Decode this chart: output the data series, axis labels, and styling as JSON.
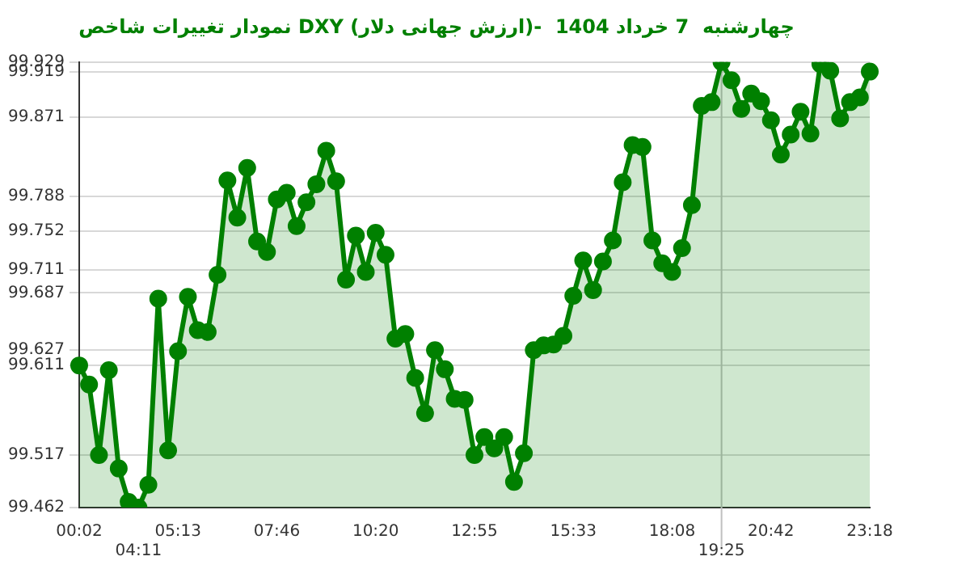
{
  "chart_data": {
    "type": "area",
    "title": "نمودار تغییرات شاخص DXY (ارزش جهانی دلار)-  چهارشنبه  7 خرداد 1404",
    "categories": [
      "00:02",
      null,
      null,
      null,
      null,
      null,
      "04:11",
      null,
      null,
      null,
      "05:13",
      null,
      null,
      null,
      null,
      null,
      null,
      null,
      null,
      null,
      "07:46",
      null,
      null,
      null,
      null,
      null,
      null,
      null,
      null,
      null,
      "10:20",
      null,
      null,
      null,
      null,
      null,
      null,
      null,
      null,
      null,
      "12:55",
      null,
      null,
      null,
      null,
      null,
      null,
      null,
      null,
      null,
      "15:33",
      null,
      null,
      null,
      null,
      null,
      null,
      null,
      null,
      null,
      "18:08",
      null,
      null,
      null,
      null,
      "19:25",
      null,
      null,
      null,
      null,
      "20:42",
      null,
      null,
      null,
      null,
      null,
      null,
      null,
      null,
      null,
      "23:18"
    ],
    "series": [
      {
        "color": "#008000",
        "values": [
          99.611,
          99.591,
          99.517,
          99.606,
          99.503,
          99.468,
          99.462,
          99.486,
          99.681,
          99.522,
          99.626,
          99.683,
          99.648,
          99.646,
          99.706,
          99.805,
          99.766,
          99.818,
          99.741,
          99.73,
          99.785,
          99.792,
          99.757,
          99.782,
          99.801,
          99.836,
          99.804,
          99.701,
          99.747,
          99.709,
          99.75,
          99.727,
          99.639,
          99.644,
          99.598,
          99.561,
          99.627,
          99.607,
          99.576,
          99.575,
          99.517,
          99.536,
          99.524,
          99.536,
          99.489,
          99.519,
          99.627,
          99.632,
          99.633,
          99.642,
          99.684,
          99.721,
          99.69,
          99.72,
          99.742,
          99.803,
          99.842,
          99.84,
          99.742,
          99.718,
          99.709,
          99.734,
          99.779,
          99.883,
          99.887,
          99.929,
          99.91,
          99.88,
          99.896,
          99.888,
          99.868,
          99.832,
          99.853,
          99.877,
          99.854,
          99.927,
          99.92,
          99.87,
          99.887,
          99.892,
          99.919
        ]
      }
    ],
    "ylim": [
      99.462,
      99.929
    ],
    "yticks": [
      99.462,
      99.517,
      99.611,
      99.627,
      99.687,
      99.711,
      99.752,
      99.788,
      99.871,
      99.919,
      99.929
    ],
    "ref_lines": [
      {
        "axis": "x",
        "value": "19:25",
        "color": "#c0c0c0"
      }
    ],
    "grid": "y",
    "marker": "circle",
    "legend": false
  }
}
